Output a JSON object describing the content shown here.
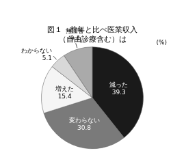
{
  "chart_data": {
    "type": "pie",
    "title": [
      "図１　前年と比べ医業収入",
      "（自由診療含む）は"
    ],
    "categories": [
      "減った",
      "変わらない",
      "増えた",
      "わからない",
      "無回答"
    ],
    "values": [
      39.3,
      30.8,
      15.4,
      5.1,
      9.4
    ],
    "colors": [
      "#1a1a1a",
      "#7a7a7a",
      "#f5f5f5",
      "#d8d8d8",
      "#aaaaaa"
    ],
    "data_labels": true,
    "annotations": [
      "(%)"
    ]
  }
}
